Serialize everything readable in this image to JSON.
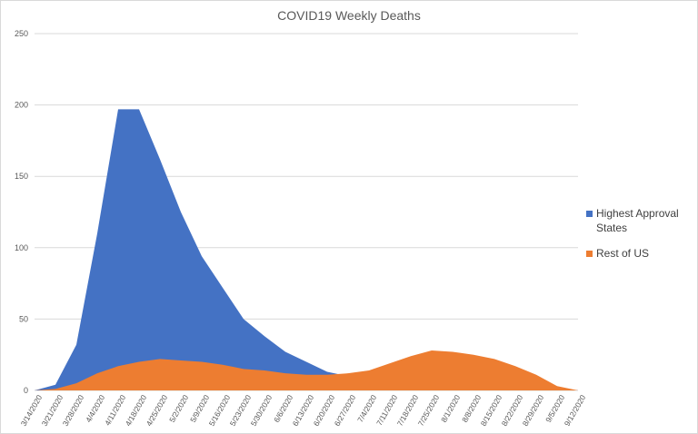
{
  "chart_data": {
    "type": "area",
    "title": "COVID19 Weekly Deaths",
    "ylim": [
      0,
      250
    ],
    "yticks": [
      0,
      50,
      100,
      150,
      200,
      250
    ],
    "grid": true,
    "legend_position": "right",
    "categories": [
      "3/14/2020",
      "3/21/2020",
      "3/28/2020",
      "4/4/2020",
      "4/11/2020",
      "4/18/2020",
      "4/25/2020",
      "5/2/2020",
      "5/9/2020",
      "5/16/2020",
      "5/23/2020",
      "5/30/2020",
      "6/6/2020",
      "6/13/2020",
      "6/20/2020",
      "6/27/2020",
      "7/4/2020",
      "7/11/2020",
      "7/18/2020",
      "7/25/2020",
      "8/1/2020",
      "8/8/2020",
      "8/15/2020",
      "8/22/2020",
      "8/29/2020",
      "9/5/2020",
      "9/12/2020"
    ],
    "series": [
      {
        "name": "Highest Approval States",
        "color": "#4472C4",
        "values": [
          0,
          4,
          32,
          110,
          197,
          197,
          162,
          125,
          94,
          72,
          50,
          38,
          27,
          20,
          13,
          10,
          8,
          5,
          4,
          3,
          2,
          2,
          1,
          1,
          1,
          1,
          0
        ]
      },
      {
        "name": "Rest of US",
        "color": "#ED7D31",
        "values": [
          0,
          1,
          5,
          12,
          17,
          20,
          22,
          21,
          20,
          18,
          15,
          14,
          12,
          11,
          11,
          12,
          14,
          19,
          24,
          28,
          27,
          25,
          22,
          17,
          11,
          3,
          0
        ]
      }
    ]
  }
}
